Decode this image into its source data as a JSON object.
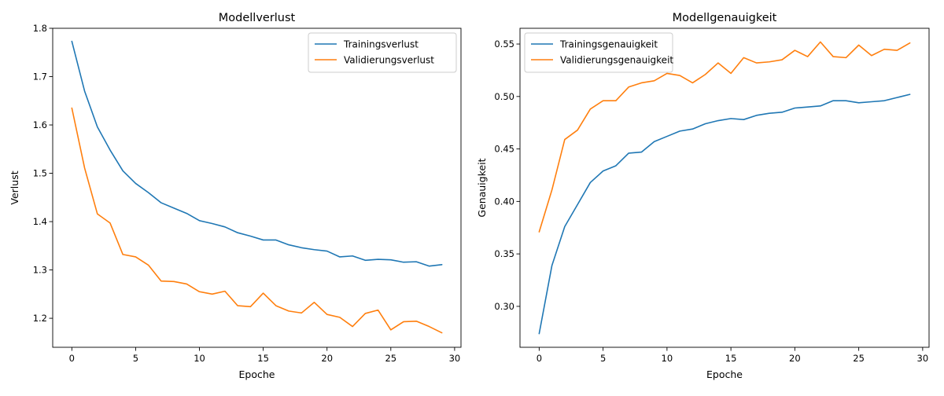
{
  "chart_data": [
    {
      "type": "line",
      "title": "Modellverlust",
      "xlabel": "Epoche",
      "ylabel": "Verlust",
      "xlim": [
        -1.5,
        30.5
      ],
      "ylim": [
        1.14,
        1.8
      ],
      "xticks": [
        0,
        5,
        10,
        15,
        20,
        25,
        30
      ],
      "yticks": [
        1.2,
        1.3,
        1.4,
        1.5,
        1.6,
        1.7,
        1.8
      ],
      "ytick_decimals": 1,
      "legend": "top-right",
      "grid": false,
      "x": [
        0,
        1,
        2,
        3,
        4,
        5,
        6,
        7,
        8,
        9,
        10,
        11,
        12,
        13,
        14,
        15,
        16,
        17,
        18,
        19,
        20,
        21,
        22,
        23,
        24,
        25,
        26,
        27,
        28,
        29
      ],
      "series": [
        {
          "name": "Trainingsverlust",
          "color": "#1f77b4",
          "values": [
            1.773,
            1.67,
            1.596,
            1.548,
            1.505,
            1.479,
            1.46,
            1.439,
            1.428,
            1.417,
            1.402,
            1.396,
            1.389,
            1.377,
            1.37,
            1.362,
            1.362,
            1.352,
            1.346,
            1.342,
            1.339,
            1.327,
            1.329,
            1.32,
            1.322,
            1.321,
            1.316,
            1.317,
            1.308,
            1.311
          ]
        },
        {
          "name": "Validierungsverlust",
          "color": "#ff7f0e",
          "values": [
            1.635,
            1.511,
            1.416,
            1.397,
            1.332,
            1.327,
            1.31,
            1.277,
            1.276,
            1.271,
            1.255,
            1.25,
            1.256,
            1.226,
            1.224,
            1.252,
            1.226,
            1.215,
            1.211,
            1.233,
            1.208,
            1.202,
            1.183,
            1.21,
            1.217,
            1.176,
            1.193,
            1.194,
            1.183,
            1.17
          ]
        }
      ]
    },
    {
      "type": "line",
      "title": "Modellgenauigkeit",
      "xlabel": "Epoche",
      "ylabel": "Genauigkeit",
      "xlim": [
        -1.5,
        30.5
      ],
      "ylim": [
        0.261,
        0.565
      ],
      "xticks": [
        0,
        5,
        10,
        15,
        20,
        25,
        30
      ],
      "yticks": [
        0.3,
        0.35,
        0.4,
        0.45,
        0.5,
        0.55
      ],
      "ytick_decimals": 2,
      "legend": "top-left",
      "grid": false,
      "x": [
        0,
        1,
        2,
        3,
        4,
        5,
        6,
        7,
        8,
        9,
        10,
        11,
        12,
        13,
        14,
        15,
        16,
        17,
        18,
        19,
        20,
        21,
        22,
        23,
        24,
        25,
        26,
        27,
        28,
        29
      ],
      "series": [
        {
          "name": "Trainingsgenauigkeit",
          "color": "#1f77b4",
          "values": [
            0.274,
            0.339,
            0.376,
            0.397,
            0.418,
            0.429,
            0.434,
            0.446,
            0.447,
            0.457,
            0.462,
            0.467,
            0.469,
            0.474,
            0.477,
            0.479,
            0.478,
            0.482,
            0.484,
            0.485,
            0.489,
            0.49,
            0.491,
            0.496,
            0.496,
            0.494,
            0.495,
            0.496,
            0.499,
            0.502
          ]
        },
        {
          "name": "Validierungsgenauigkeit",
          "color": "#ff7f0e",
          "values": [
            0.371,
            0.411,
            0.459,
            0.468,
            0.488,
            0.496,
            0.496,
            0.509,
            0.513,
            0.515,
            0.522,
            0.52,
            0.513,
            0.521,
            0.532,
            0.522,
            0.537,
            0.532,
            0.533,
            0.535,
            0.544,
            0.538,
            0.552,
            0.538,
            0.537,
            0.549,
            0.539,
            0.545,
            0.544,
            0.551
          ]
        }
      ]
    }
  ]
}
